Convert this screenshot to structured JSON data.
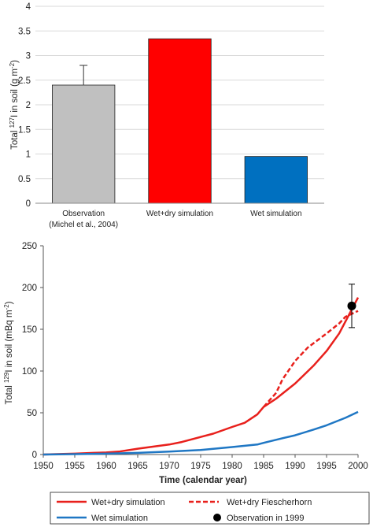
{
  "chart_data": [
    {
      "type": "bar",
      "ylabel_prefix": "Total ",
      "ylabel_sup": "127",
      "ylabel_mid": "I in soil (g m",
      "ylabel_sup2": "-2",
      "ylabel_suffix": ")",
      "ylim": [
        0,
        4
      ],
      "yticks": [
        0,
        0.5,
        1,
        1.5,
        2,
        2.5,
        3,
        3.5,
        4
      ],
      "ytick_labels": [
        "0",
        "0.5",
        "1",
        "1.5",
        "2",
        "2.5",
        "3",
        "3.5",
        "4"
      ],
      "grid": true,
      "categories": [
        {
          "line1": "Observation",
          "line2": "(Michel et al., 2004)"
        },
        {
          "line1": "Wet+dry simulation",
          "line2": ""
        },
        {
          "line1": "Wet simulation",
          "line2": ""
        }
      ],
      "values": [
        2.4,
        3.34,
        0.95
      ],
      "error_bars": [
        0.4,
        null,
        null
      ],
      "colors": [
        "#c0c0c0",
        "#ff0000",
        "#0070c0"
      ]
    },
    {
      "type": "line",
      "ylabel_prefix": "Total ",
      "ylabel_sup": "129",
      "ylabel_mid": "I in soil (mBq m",
      "ylabel_sup2": "-2",
      "ylabel_suffix": ")",
      "xlabel": "Time (calendar year)",
      "xlim": [
        1950,
        2000
      ],
      "ylim": [
        0,
        250
      ],
      "xticks": [
        1950,
        1955,
        1960,
        1965,
        1970,
        1975,
        1980,
        1985,
        1990,
        1995,
        2000
      ],
      "yticks": [
        0,
        50,
        100,
        150,
        200,
        250
      ],
      "grid": false,
      "series": [
        {
          "name": "Wet+dry simulation",
          "color": "#e8201c",
          "style": "solid",
          "x": [
            1950,
            1952,
            1955,
            1958,
            1960,
            1962,
            1965,
            1968,
            1970,
            1972,
            1975,
            1977,
            1980,
            1982,
            1984,
            1985,
            1987,
            1990,
            1993,
            1995,
            1997,
            2000
          ],
          "y": [
            0,
            0.5,
            1,
            2,
            2.5,
            3.5,
            7,
            10,
            12,
            15,
            21,
            25,
            33,
            38,
            48,
            57,
            67,
            85,
            107,
            124,
            145,
            188
          ]
        },
        {
          "name": "Wet+dry Fiescherhorn",
          "color": "#e8201c",
          "style": "dashed",
          "x": [
            1985,
            1987,
            1988,
            1990,
            1992,
            1995,
            1997,
            1998,
            2000
          ],
          "y": [
            57,
            74,
            90,
            112,
            128,
            145,
            157,
            165,
            172
          ]
        },
        {
          "name": "Wet simulation",
          "color": "#1f77c4",
          "style": "solid",
          "x": [
            1950,
            1955,
            1960,
            1965,
            1970,
            1975,
            1980,
            1984,
            1985,
            1988,
            1990,
            1993,
            1995,
            1998,
            2000
          ],
          "y": [
            0,
            0.5,
            1,
            2,
            3.5,
            5.5,
            9,
            12,
            14,
            19.5,
            23,
            30,
            35,
            44,
            51
          ]
        },
        {
          "name": "Observation in 1999",
          "color": "#000000",
          "style": "point",
          "x": [
            1999
          ],
          "y": [
            178
          ],
          "err_low": 152,
          "err_high": 204
        }
      ]
    }
  ]
}
